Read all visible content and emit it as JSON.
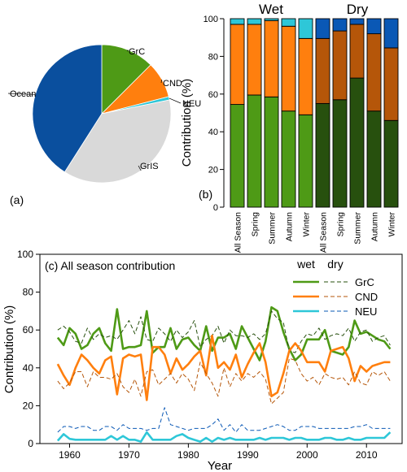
{
  "chart_data": [
    {
      "type": "pie",
      "panel_label": "(a)",
      "slices": [
        {
          "name": "GrC",
          "value": 12.5,
          "color": "#4e9a16"
        },
        {
          "name": "CND",
          "value": 8.5,
          "color": "#ff7f0e"
        },
        {
          "name": "NEU",
          "value": 0.8,
          "color": "#2ec7d8"
        },
        {
          "name": "GrIS",
          "value": 37.2,
          "color": "#d9d9d9"
        },
        {
          "name": "Ocean",
          "value": 41.0,
          "color": "#0a4f9e"
        }
      ]
    },
    {
      "type": "bar",
      "stacked": true,
      "panel_label": "(b)",
      "ylabel": "Contribution (%)",
      "ylim": [
        0,
        100
      ],
      "yticks": [
        "0",
        "20",
        "40",
        "60",
        "80",
        "100"
      ],
      "groups": [
        {
          "name": "Wet",
          "categories": [
            "All Season",
            "Spring",
            "Summer",
            "Autumn",
            "Winter"
          ],
          "series": [
            {
              "color": "#4e9a16",
              "values": [
                54.5,
                59.5,
                58.5,
                51,
                49
              ]
            },
            {
              "color": "#ff7f0e",
              "values": [
                42.5,
                37.5,
                40.5,
                45,
                40.5
              ]
            },
            {
              "color": "#2ec7d8",
              "values": [
                3,
                3,
                1,
                4,
                10.5
              ]
            }
          ]
        },
        {
          "name": "Dry",
          "categories": [
            "All Season",
            "Spring",
            "Summer",
            "Autumn",
            "Winter"
          ],
          "series": [
            {
              "color": "#27500e",
              "values": [
                55,
                57,
                68.5,
                51,
                46
              ]
            },
            {
              "color": "#b55609",
              "values": [
                34.5,
                36.5,
                28.5,
                41,
                38.5
              ]
            },
            {
              "color": "#0a58b5",
              "values": [
                10.5,
                6.5,
                3,
                8,
                15.5
              ]
            }
          ]
        }
      ]
    },
    {
      "type": "line",
      "title": "(c) All season contribution",
      "xlabel": "Year",
      "ylabel": "Contribution (%)",
      "xlim": [
        1955,
        2016
      ],
      "ylim": [
        0,
        100
      ],
      "xticks": [
        "1960",
        "1970",
        "1980",
        "1990",
        "2000",
        "2010"
      ],
      "yticks": [
        "0",
        "20",
        "40",
        "60",
        "80",
        "100"
      ],
      "legend": {
        "position": "top-right",
        "headers": [
          "wet",
          "dry"
        ]
      },
      "x": [
        1958,
        1959,
        1960,
        1961,
        1962,
        1963,
        1964,
        1965,
        1966,
        1967,
        1968,
        1969,
        1970,
        1971,
        1972,
        1973,
        1974,
        1975,
        1976,
        1977,
        1978,
        1979,
        1980,
        1981,
        1982,
        1983,
        1984,
        1985,
        1986,
        1987,
        1988,
        1989,
        1990,
        1991,
        1992,
        1993,
        1994,
        1995,
        1996,
        1997,
        1998,
        1999,
        2000,
        2001,
        2002,
        2003,
        2004,
        2005,
        2006,
        2007,
        2008,
        2009,
        2010,
        2011,
        2012,
        2013,
        2014
      ],
      "series": [
        {
          "name": "GrC",
          "style": "wet",
          "color": "#4e9a16",
          "values": [
            56,
            52,
            61,
            58,
            50,
            52,
            58,
            61,
            53,
            49,
            71,
            50,
            51,
            51,
            52,
            70,
            48,
            51,
            51,
            61,
            50,
            55,
            56,
            52,
            49,
            62,
            49,
            56,
            56,
            58,
            50,
            62,
            56,
            50,
            44,
            54,
            72,
            70,
            59,
            50,
            44,
            47,
            55,
            55,
            55,
            60,
            49,
            48,
            47,
            51,
            65,
            58,
            59,
            57,
            55,
            54,
            50
          ]
        },
        {
          "name": "GrC",
          "style": "dry",
          "color": "#27500e",
          "values": [
            60,
            62,
            59,
            54,
            53,
            61,
            55,
            58,
            56,
            57,
            55,
            60,
            65,
            58,
            67,
            55,
            54,
            61,
            58,
            54,
            60,
            56,
            59,
            65,
            51,
            55,
            57,
            62,
            53,
            60,
            57,
            57,
            56,
            58,
            55,
            58,
            70,
            66,
            64,
            49,
            48,
            54,
            58,
            57,
            61,
            55,
            57,
            58,
            57,
            61,
            54,
            59,
            60,
            54,
            56,
            57,
            52
          ]
        },
        {
          "name": "CND",
          "style": "wet",
          "color": "#ff7f0e",
          "values": [
            42,
            36,
            31,
            40,
            47,
            44,
            40,
            37,
            44,
            46,
            26,
            45,
            47,
            46,
            47,
            23,
            51,
            51,
            47,
            37,
            45,
            39,
            42,
            46,
            49,
            36,
            57,
            40,
            43,
            39,
            47,
            35,
            42,
            48,
            53,
            43,
            25,
            27,
            37,
            49,
            53,
            49,
            43,
            43,
            43,
            38,
            49,
            50,
            51,
            45,
            33,
            41,
            38,
            41,
            42,
            43,
            43
          ]
        },
        {
          "name": "CND",
          "style": "dry",
          "color": "#b55609",
          "values": [
            33,
            29,
            32,
            38,
            38,
            30,
            38,
            35,
            35,
            34,
            37,
            30,
            27,
            34,
            25,
            38,
            39,
            31,
            34,
            37,
            32,
            37,
            34,
            28,
            43,
            37,
            32,
            25,
            40,
            30,
            37,
            33,
            37,
            35,
            38,
            34,
            21,
            24,
            27,
            45,
            44,
            37,
            33,
            35,
            31,
            37,
            35,
            34,
            35,
            31,
            38,
            32,
            31,
            38,
            36,
            38,
            33
          ]
        },
        {
          "name": "NEU",
          "style": "wet",
          "color": "#2ec7d8",
          "values": [
            1.5,
            5,
            2.5,
            2,
            2,
            2,
            2,
            2,
            2,
            4,
            2,
            4,
            2,
            2,
            1,
            6,
            2,
            2,
            2,
            2,
            4,
            5,
            3,
            2,
            1,
            3,
            1,
            3,
            2,
            3,
            2,
            2,
            2,
            2,
            3,
            2,
            3,
            3,
            3,
            2,
            3,
            3,
            2,
            2,
            2,
            3,
            3,
            2,
            2,
            3,
            2,
            2,
            3,
            3,
            3,
            3,
            6
          ]
        },
        {
          "name": "NEU",
          "style": "dry",
          "color": "#0a58b5",
          "values": [
            6,
            9,
            9,
            8,
            9,
            9,
            7,
            7,
            9,
            9,
            7,
            10,
            8,
            8,
            8,
            7,
            8,
            8,
            19,
            10,
            9,
            8,
            7,
            8,
            8,
            8,
            10,
            13,
            7,
            10,
            6,
            10,
            7,
            7,
            7,
            8,
            9,
            10,
            9,
            7,
            7,
            9,
            9,
            9,
            8,
            8,
            8,
            8,
            8,
            8,
            9,
            9,
            10,
            8,
            8,
            8,
            8
          ]
        }
      ]
    }
  ]
}
